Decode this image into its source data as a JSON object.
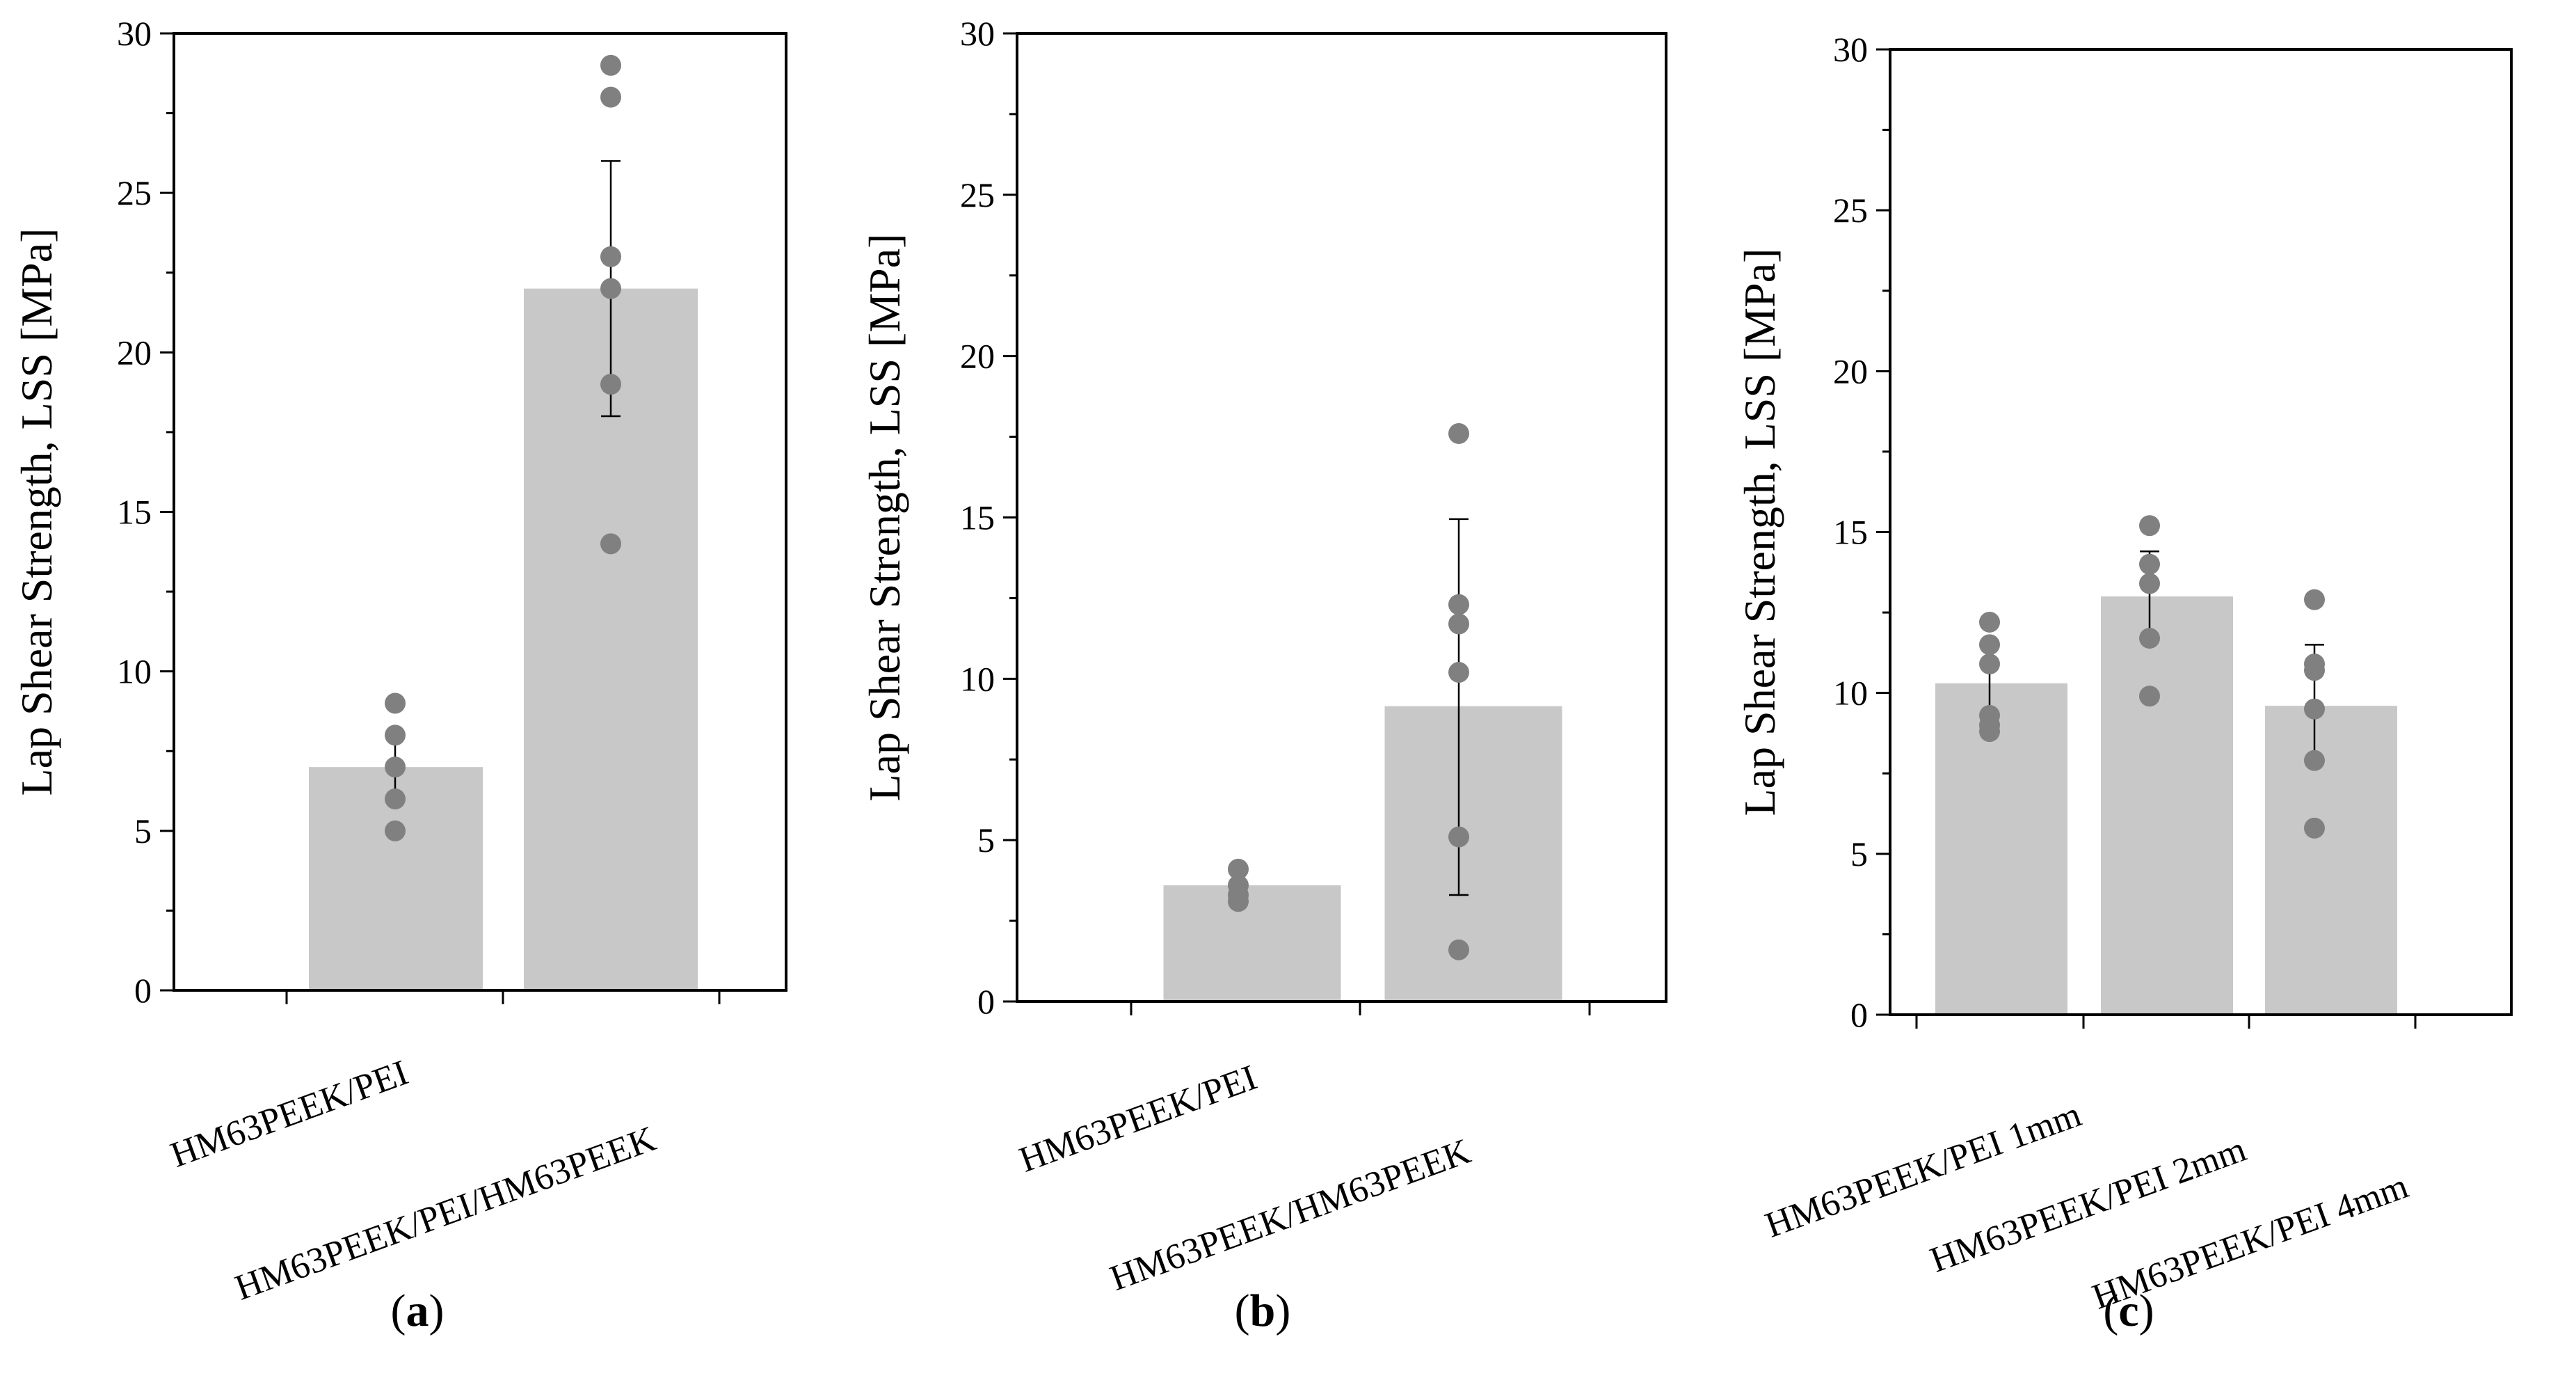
{
  "chart_data": [
    {
      "type": "bar",
      "panel_label": "a",
      "ylabel": "Lap Shear Strength, LSS [MPa]",
      "ylim": [
        0,
        30
      ],
      "yticks": [
        0,
        5,
        10,
        15,
        20,
        25,
        30
      ],
      "categories": [
        "HM63PEEK/PEI",
        "HM63PEEK/PEI/HM63PEEK"
      ],
      "values": [
        7,
        22
      ],
      "error_low": [
        6,
        18
      ],
      "error_high": [
        8,
        26
      ],
      "points": [
        [
          5,
          6,
          7,
          8,
          9
        ],
        [
          14,
          19,
          22,
          23,
          28,
          29
        ]
      ],
      "bar_color": "#c8c8c8",
      "point_color": "#808080"
    },
    {
      "type": "bar",
      "panel_label": "b",
      "ylabel": "Lap Shear Strength, LSS [MPa]",
      "ylim": [
        0,
        30
      ],
      "yticks": [
        0,
        5,
        10,
        15,
        20,
        25,
        30
      ],
      "categories": [
        "HM63PEEK/PEI",
        "HM63PEEK/HM63PEEK"
      ],
      "values": [
        3.6,
        9.15
      ],
      "error_low": [
        3.2,
        3.3
      ],
      "error_high": [
        4.0,
        14.95
      ],
      "points": [
        [
          3.1,
          3.3,
          3.6,
          4.1
        ],
        [
          1.6,
          5.1,
          10.2,
          11.7,
          12.3,
          17.6
        ]
      ],
      "bar_color": "#c8c8c8",
      "point_color": "#808080"
    },
    {
      "type": "bar",
      "panel_label": "c",
      "ylabel": "Lap Shear Strength, LSS [MPa]",
      "ylim": [
        0,
        30
      ],
      "yticks": [
        0,
        5,
        10,
        15,
        20,
        25,
        30
      ],
      "categories": [
        "HM63PEEK/PEI 1mm",
        "HM63PEEK/PEI 2mm",
        "HM63PEEK/PEI 4mm"
      ],
      "values": [
        10.3,
        13.0,
        9.6
      ],
      "error_low": [
        9.0,
        11.7,
        7.9
      ],
      "error_high": [
        11.6,
        14.4,
        11.5
      ],
      "points": [
        [
          8.8,
          9.0,
          9.3,
          10.9,
          11.5,
          12.2
        ],
        [
          9.9,
          11.7,
          13.4,
          14.0,
          15.2
        ],
        [
          5.8,
          7.9,
          9.5,
          10.7,
          10.9,
          12.9
        ]
      ],
      "bar_color": "#c8c8c8",
      "point_color": "#808080"
    }
  ]
}
